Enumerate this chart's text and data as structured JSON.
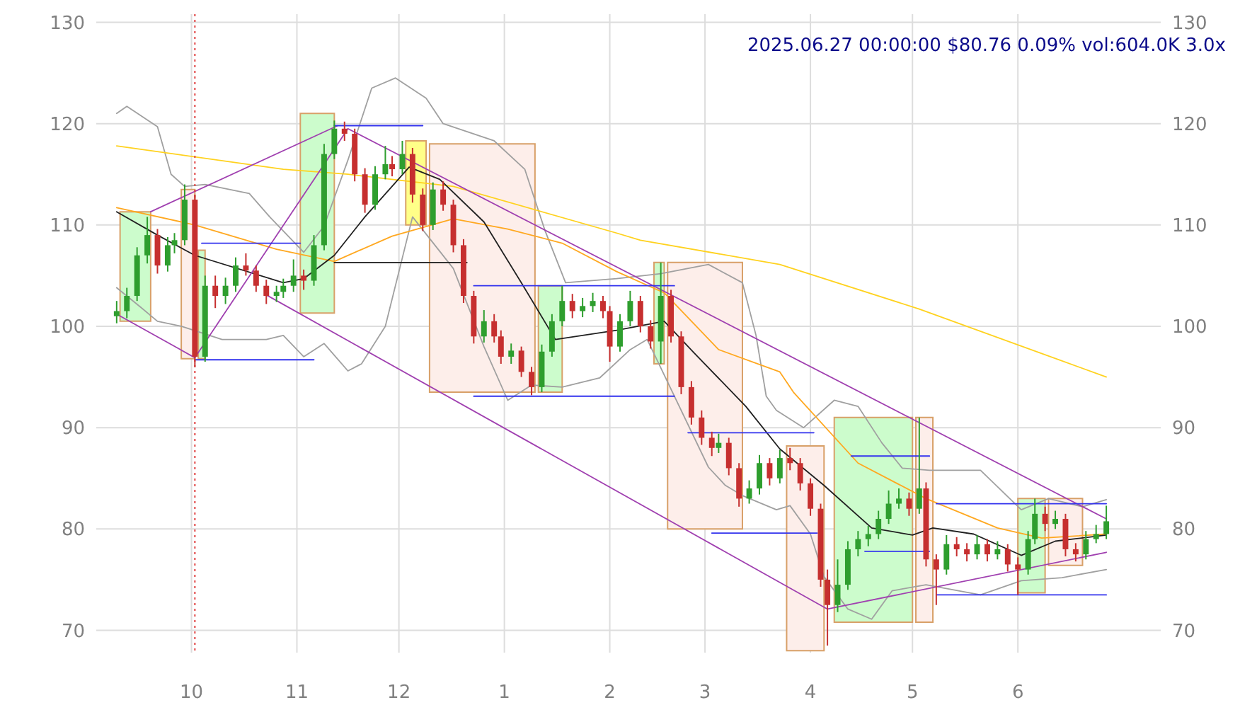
{
  "chart_data": {
    "type": "candlestick",
    "annotations": [
      "2025.06.27 00:00:00 $80.76 0.09% vol:604.0K 3.0x"
    ],
    "xlim": [
      "2024-09-03",
      "2025-07-13"
    ],
    "ylim": [
      67.8,
      130.8
    ],
    "y2lim": [
      67.8,
      130.8
    ],
    "xticks": [
      {
        "value": "2024-10-01",
        "label": "10"
      },
      {
        "value": "2024-11-01",
        "label": "11"
      },
      {
        "value": "2024-12-01",
        "label": "12"
      },
      {
        "value": "2025-01-01",
        "label": "1"
      },
      {
        "value": "2025-02-01",
        "label": "2"
      },
      {
        "value": "2025-03-01",
        "label": "3"
      },
      {
        "value": "2025-04-01",
        "label": "4"
      },
      {
        "value": "2025-05-01",
        "label": "5"
      },
      {
        "value": "2025-06-01",
        "label": "6"
      }
    ],
    "yticks": [
      70,
      80,
      90,
      100,
      110,
      120,
      130
    ],
    "y2ticks": [
      70,
      80,
      90,
      100,
      110,
      120,
      130
    ],
    "grid": true,
    "x": [
      "2024-09-09",
      "2024-09-12",
      "2024-09-15",
      "2024-09-18",
      "2024-09-21",
      "2024-09-24",
      "2024-09-26",
      "2024-09-29",
      "2024-10-02",
      "2024-10-05",
      "2024-10-08",
      "2024-10-11",
      "2024-10-14",
      "2024-10-17",
      "2024-10-20",
      "2024-10-23",
      "2024-10-26",
      "2024-10-28",
      "2024-10-31",
      "2024-11-03",
      "2024-11-06",
      "2024-11-09",
      "2024-11-12",
      "2024-11-15",
      "2024-11-18",
      "2024-11-21",
      "2024-11-24",
      "2024-11-27",
      "2024-11-29",
      "2024-12-02",
      "2024-12-05",
      "2024-12-08",
      "2024-12-11",
      "2024-12-14",
      "2024-12-17",
      "2024-12-20",
      "2024-12-23",
      "2024-12-26",
      "2024-12-29",
      "2024-12-31",
      "2025-01-03",
      "2025-01-06",
      "2025-01-09",
      "2025-01-12",
      "2025-01-15",
      "2025-01-18",
      "2025-01-21",
      "2025-01-24",
      "2025-01-27",
      "2025-01-30",
      "2025-02-01",
      "2025-02-04",
      "2025-02-07",
      "2025-02-10",
      "2025-02-13",
      "2025-02-16",
      "2025-02-19",
      "2025-02-22",
      "2025-02-25",
      "2025-02-28",
      "2025-03-03",
      "2025-03-05",
      "2025-03-08",
      "2025-03-11",
      "2025-03-14",
      "2025-03-17",
      "2025-03-20",
      "2025-03-23",
      "2025-03-26",
      "2025-03-29",
      "2025-04-01",
      "2025-04-04",
      "2025-04-06",
      "2025-04-09",
      "2025-04-12",
      "2025-04-15",
      "2025-04-18",
      "2025-04-21",
      "2025-04-24",
      "2025-04-27",
      "2025-04-30",
      "2025-05-03",
      "2025-05-05",
      "2025-05-08",
      "2025-05-11",
      "2025-05-14",
      "2025-05-17",
      "2025-05-20",
      "2025-05-23",
      "2025-05-26",
      "2025-05-29",
      "2025-06-01",
      "2025-06-04",
      "2025-06-06",
      "2025-06-09",
      "2025-06-12",
      "2025-06-15",
      "2025-06-18",
      "2025-06-21",
      "2025-06-24",
      "2025-06-27"
    ],
    "ohlc": [
      [
        101,
        102.5,
        100.3,
        101.5
      ],
      [
        101.5,
        103.8,
        100.8,
        103
      ],
      [
        103,
        107.8,
        102.5,
        107
      ],
      [
        107,
        110.8,
        106.2,
        109
      ],
      [
        109,
        109.6,
        105.2,
        106
      ],
      [
        106,
        108.8,
        105.4,
        108
      ],
      [
        108,
        109.2,
        107.2,
        108.5
      ],
      [
        108.5,
        114,
        108,
        112.5
      ],
      [
        112.5,
        113,
        96,
        97
      ],
      [
        97,
        105,
        96.5,
        104
      ],
      [
        104,
        105,
        101.8,
        103
      ],
      [
        103,
        104.8,
        102.2,
        104
      ],
      [
        104,
        106.8,
        103.4,
        106
      ],
      [
        106,
        107.2,
        105,
        105.5
      ],
      [
        105.5,
        106,
        103.4,
        104
      ],
      [
        104,
        104.6,
        102.2,
        103
      ],
      [
        103,
        104,
        102.4,
        103.4
      ],
      [
        103.4,
        104.7,
        102.8,
        104
      ],
      [
        104,
        106.6,
        103.4,
        105
      ],
      [
        105,
        105.6,
        103.6,
        104.5
      ],
      [
        104.5,
        109,
        104,
        108
      ],
      [
        108,
        118,
        107.5,
        117
      ],
      [
        117,
        120.3,
        116.5,
        119.5
      ],
      [
        119.5,
        120.2,
        118.3,
        119
      ],
      [
        119,
        119.5,
        114.3,
        115
      ],
      [
        115,
        115.6,
        111.2,
        112
      ],
      [
        112,
        115.8,
        111.5,
        115
      ],
      [
        115,
        117.8,
        114.5,
        116
      ],
      [
        116,
        116.8,
        114.8,
        115.5
      ],
      [
        115.5,
        118.3,
        115,
        117
      ],
      [
        117,
        117.6,
        112.2,
        113
      ],
      [
        113,
        113.6,
        109.4,
        110
      ],
      [
        110,
        114.2,
        109.5,
        113.5
      ],
      [
        113.5,
        114.3,
        111.4,
        112
      ],
      [
        112,
        112.5,
        107.3,
        108
      ],
      [
        108,
        108.6,
        102.3,
        103
      ],
      [
        103,
        103.5,
        98.3,
        99
      ],
      [
        99,
        101.6,
        98.4,
        100.5
      ],
      [
        100.5,
        101.2,
        98.4,
        99
      ],
      [
        99,
        99.6,
        96.3,
        97
      ],
      [
        97,
        98.3,
        96.3,
        97.6
      ],
      [
        97.6,
        98,
        95,
        95.5
      ],
      [
        95.5,
        96,
        93.2,
        94
      ],
      [
        94,
        98.2,
        93.5,
        97.5
      ],
      [
        97.5,
        101.2,
        97,
        100.5
      ],
      [
        100.5,
        104,
        100,
        102.5
      ],
      [
        102.5,
        103.2,
        100.8,
        101.5
      ],
      [
        101.5,
        102.8,
        100.9,
        102
      ],
      [
        102,
        103.3,
        101.4,
        102.5
      ],
      [
        102.5,
        103,
        100.8,
        101.5
      ],
      [
        101.5,
        102,
        96.5,
        98
      ],
      [
        98,
        101.2,
        97.5,
        100.5
      ],
      [
        100.5,
        103.5,
        100,
        102.5
      ],
      [
        102.5,
        103,
        99.4,
        100
      ],
      [
        100,
        100.6,
        97.8,
        98.5
      ],
      [
        98.5,
        106.3,
        96.3,
        103
      ],
      [
        103,
        103.6,
        98.4,
        99
      ],
      [
        99,
        99.5,
        93.3,
        94
      ],
      [
        94,
        94.6,
        90.3,
        91
      ],
      [
        91,
        91.7,
        88.3,
        89
      ],
      [
        89,
        89.6,
        87.2,
        88
      ],
      [
        88,
        89.4,
        87.5,
        88.5
      ],
      [
        88.5,
        89,
        85.3,
        86
      ],
      [
        86,
        86.5,
        82.2,
        83
      ],
      [
        83,
        84.8,
        82.5,
        84
      ],
      [
        84,
        87.3,
        83.4,
        86.5
      ],
      [
        86.5,
        87,
        84.3,
        85
      ],
      [
        85,
        87.8,
        84.5,
        87
      ],
      [
        87,
        88,
        85.8,
        86.5
      ],
      [
        86.5,
        87,
        83.8,
        84.5
      ],
      [
        84.5,
        85,
        81.3,
        82
      ],
      [
        82,
        82.5,
        74.3,
        75
      ],
      [
        75,
        76,
        68.5,
        72.5
      ],
      [
        72.5,
        77,
        71.8,
        74.5
      ],
      [
        74.5,
        78.8,
        74,
        78
      ],
      [
        78,
        79.8,
        77.3,
        79
      ],
      [
        79,
        80.3,
        78.3,
        79.5
      ],
      [
        79.5,
        81.8,
        79,
        81
      ],
      [
        81,
        83.8,
        80.5,
        82.5
      ],
      [
        82.5,
        84,
        82,
        83
      ],
      [
        83,
        83.6,
        81.3,
        82
      ],
      [
        82,
        91,
        81.5,
        84
      ],
      [
        84,
        84.6,
        76.3,
        77
      ],
      [
        77,
        77.5,
        72.5,
        76
      ],
      [
        76,
        79.4,
        75.5,
        78.5
      ],
      [
        78.5,
        79.2,
        77.3,
        78
      ],
      [
        78,
        78.6,
        76.8,
        77.5
      ],
      [
        77.5,
        79.4,
        77,
        78.5
      ],
      [
        78.5,
        79,
        76.8,
        77.5
      ],
      [
        77.5,
        78.8,
        77,
        78
      ],
      [
        78,
        78.5,
        75.8,
        76.5
      ],
      [
        76.5,
        77.2,
        73.5,
        76
      ],
      [
        76,
        79.8,
        75.5,
        79
      ],
      [
        79,
        83,
        78.5,
        81.5
      ],
      [
        81.5,
        82.2,
        79.8,
        80.5
      ],
      [
        80.5,
        81.8,
        80,
        81
      ],
      [
        81,
        81.5,
        77.3,
        78
      ],
      [
        78,
        78.6,
        76.8,
        77.5
      ],
      [
        77.5,
        79.8,
        77,
        79
      ],
      [
        79,
        80.4,
        78.6,
        79.5
      ],
      [
        79.5,
        82.3,
        79,
        80.76
      ]
    ],
    "colors": [
      "#2e9e2e",
      "#2e9e2e",
      "#2e9e2e",
      "#2e9e2e",
      "#c62f2f",
      "#2e9e2e",
      "#2e9e2e",
      "#2e9e2e",
      "#c62f2f",
      "#2e9e2e",
      "#c62f2f",
      "#2e9e2e",
      "#2e9e2e",
      "#c62f2f",
      "#c62f2f",
      "#c62f2f",
      "#2e9e2e",
      "#2e9e2e",
      "#2e9e2e",
      "#c62f2f",
      "#2e9e2e",
      "#2e9e2e",
      "#2e9e2e",
      "#c62f2f",
      "#c62f2f",
      "#c62f2f",
      "#2e9e2e",
      "#2e9e2e",
      "#c62f2f",
      "#2e9e2e",
      "#c62f2f",
      "#c62f2f",
      "#2e9e2e",
      "#c62f2f",
      "#c62f2f",
      "#c62f2f",
      "#c62f2f",
      "#2e9e2e",
      "#c62f2f",
      "#c62f2f",
      "#2e9e2e",
      "#c62f2f",
      "#c62f2f",
      "#2e9e2e",
      "#2e9e2e",
      "#2e9e2e",
      "#c62f2f",
      "#2e9e2e",
      "#2e9e2e",
      "#c62f2f",
      "#c62f2f",
      "#2e9e2e",
      "#2e9e2e",
      "#c62f2f",
      "#c62f2f",
      "#2e9e2e",
      "#c62f2f",
      "#c62f2f",
      "#c62f2f",
      "#c62f2f",
      "#c62f2f",
      "#2e9e2e",
      "#c62f2f",
      "#c62f2f",
      "#2e9e2e",
      "#2e9e2e",
      "#c62f2f",
      "#2e9e2e",
      "#c62f2f",
      "#c62f2f",
      "#c62f2f",
      "#c62f2f",
      "#c62f2f",
      "#2e9e2e",
      "#2e9e2e",
      "#2e9e2e",
      "#2e9e2e",
      "#2e9e2e",
      "#2e9e2e",
      "#2e9e2e",
      "#c62f2f",
      "#2e9e2e",
      "#c62f2f",
      "#c62f2f",
      "#2e9e2e",
      "#c62f2f",
      "#c62f2f",
      "#2e9e2e",
      "#c62f2f",
      "#2e9e2e",
      "#c62f2f",
      "#c62f2f",
      "#2e9e2e",
      "#2e9e2e",
      "#c62f2f",
      "#2e9e2e",
      "#c62f2f",
      "#c62f2f",
      "#2e9e2e",
      "#2e9e2e",
      "#2e9e2e"
    ],
    "series": [
      {
        "type": "area",
        "color": "#ccfccc",
        "x": [
          "2024-09-10",
          "2024-09-10",
          "2024-09-19",
          "2024-09-19"
        ],
        "values": [
          100.5,
          111.3,
          111.3,
          100.5
        ]
      },
      {
        "type": "area",
        "color": "#fdeeea",
        "x": [
          "2024-09-28",
          "2024-09-28",
          "2024-10-02",
          "2024-10-02"
        ],
        "values": [
          96.8,
          113.5,
          113.5,
          96.8
        ]
      },
      {
        "type": "area",
        "color": "#ccfccc",
        "x": [
          "2024-10-03",
          "2024-10-03",
          "2024-10-05",
          "2024-10-05"
        ],
        "values": [
          96.8,
          107.5,
          107.5,
          96.8
        ]
      },
      {
        "type": "area",
        "color": "#ccfccc",
        "x": [
          "2024-11-02",
          "2024-11-02",
          "2024-11-12",
          "2024-11-12"
        ],
        "values": [
          101.3,
          121,
          121,
          101.3
        ]
      },
      {
        "type": "area",
        "color": "#ffff88",
        "x": [
          "2024-12-03",
          "2024-12-03",
          "2024-12-09",
          "2024-12-09"
        ],
        "values": [
          110,
          118.3,
          118.3,
          110
        ]
      },
      {
        "type": "area",
        "color": "#fdeeea",
        "x": [
          "2024-12-10",
          "2024-12-10",
          "2025-01-10",
          "2025-01-10"
        ],
        "values": [
          93.5,
          118,
          118,
          93.5
        ]
      },
      {
        "type": "area",
        "color": "#ccfccc",
        "x": [
          "2025-01-11",
          "2025-01-11",
          "2025-01-18",
          "2025-01-18"
        ],
        "values": [
          93.5,
          104,
          104,
          93.5
        ]
      },
      {
        "type": "area",
        "color": "#ccfccc",
        "x": [
          "2025-02-14",
          "2025-02-14",
          "2025-02-17",
          "2025-02-17"
        ],
        "values": [
          96.3,
          106.3,
          106.3,
          96.3
        ]
      },
      {
        "type": "area",
        "color": "#fdeeea",
        "x": [
          "2025-02-18",
          "2025-02-18",
          "2025-03-12",
          "2025-03-12"
        ],
        "values": [
          80,
          106.3,
          106.3,
          80
        ]
      },
      {
        "type": "area",
        "color": "#fdeeea",
        "x": [
          "2025-03-25",
          "2025-03-25",
          "2025-04-05",
          "2025-04-05"
        ],
        "values": [
          68,
          88.2,
          88.2,
          68
        ]
      },
      {
        "type": "area",
        "color": "#ccfccc",
        "x": [
          "2025-04-08",
          "2025-04-08",
          "2025-05-01",
          "2025-05-01"
        ],
        "values": [
          70.8,
          91,
          91,
          70.8
        ]
      },
      {
        "type": "area",
        "color": "#fdeeea",
        "x": [
          "2025-05-02",
          "2025-05-02",
          "2025-05-07",
          "2025-05-07"
        ],
        "values": [
          70.8,
          91,
          91,
          70.8
        ]
      },
      {
        "type": "area",
        "color": "#ccfccc",
        "x": [
          "2025-06-01",
          "2025-06-01",
          "2025-06-09",
          "2025-06-09"
        ],
        "values": [
          73.7,
          83,
          83,
          73.7
        ]
      },
      {
        "type": "area",
        "color": "#fdeeea",
        "x": [
          "2025-06-10",
          "2025-06-10",
          "2025-06-20",
          "2025-06-20"
        ],
        "values": [
          76.4,
          83,
          83,
          76.4
        ]
      },
      {
        "type": "line",
        "color": "#a0a0a0",
        "x": [
          "2024-09-09",
          "2024-09-12",
          "2024-09-21",
          "2024-09-25",
          "2024-09-29",
          "2024-10-05",
          "2024-10-18",
          "2024-10-24",
          "2024-11-03",
          "2024-11-09",
          "2024-11-16",
          "2024-11-23",
          "2024-11-30",
          "2024-12-09",
          "2024-12-14",
          "2024-12-29",
          "2025-01-07",
          "2025-01-13",
          "2025-01-19",
          "2025-02-03",
          "2025-02-16",
          "2025-03-02",
          "2025-03-12",
          "2025-03-16",
          "2025-03-19",
          "2025-03-22",
          "2025-03-30",
          "2025-04-08",
          "2025-04-15",
          "2025-04-22",
          "2025-04-28",
          "2025-05-06",
          "2025-05-21",
          "2025-06-02",
          "2025-06-10",
          "2025-06-20",
          "2025-06-27"
        ],
        "values": [
          121,
          121.7,
          119.7,
          115,
          113.8,
          114,
          113.1,
          110.8,
          107.3,
          109.9,
          116.4,
          123.5,
          124.5,
          122.5,
          120,
          118.3,
          115.5,
          109.4,
          104.3,
          104.7,
          105.2,
          106.1,
          104.3,
          99.1,
          93.1,
          91.7,
          90,
          92.7,
          92.1,
          88.5,
          86,
          85.8,
          85.8,
          81.9,
          83,
          82.2,
          82.9
        ]
      },
      {
        "type": "line",
        "color": "#a0a0a0",
        "x": [
          "2024-09-09",
          "2024-09-16",
          "2024-09-21",
          "2024-09-28",
          "2024-10-10",
          "2024-10-23",
          "2024-10-28",
          "2024-11-03",
          "2024-11-09",
          "2024-11-16",
          "2024-11-20",
          "2024-11-27",
          "2024-12-05",
          "2024-12-17",
          "2024-12-26",
          "2025-01-02",
          "2025-01-09",
          "2025-01-18",
          "2025-01-29",
          "2025-02-07",
          "2025-02-12",
          "2025-03-02",
          "2025-03-07",
          "2025-03-12",
          "2025-03-22",
          "2025-03-26",
          "2025-04-01",
          "2025-04-05",
          "2025-04-12",
          "2025-04-19",
          "2025-04-25",
          "2025-05-05",
          "2025-05-21",
          "2025-06-02",
          "2025-06-14",
          "2025-06-27"
        ],
        "values": [
          103.8,
          101.9,
          100.5,
          100,
          98.7,
          98.7,
          99.1,
          97,
          98.3,
          95.6,
          96.3,
          100,
          110.8,
          105.7,
          98,
          92.7,
          94.2,
          94,
          94.9,
          97.7,
          98.7,
          86.1,
          84.3,
          83.3,
          81.9,
          82.3,
          79.5,
          75.3,
          72.1,
          71.1,
          73.9,
          74.5,
          73.5,
          74.9,
          75.2,
          76
        ]
      },
      {
        "type": "line",
        "color": "#ffd21f",
        "x": [
          "2024-09-09",
          "2024-10-28",
          "2024-11-16",
          "2024-12-17",
          "2025-02-03",
          "2025-02-10",
          "2025-03-23",
          "2025-05-03",
          "2025-06-27"
        ],
        "values": [
          117.8,
          115.5,
          115,
          113.8,
          109.2,
          108.5,
          106.1,
          101.7,
          95
        ]
      },
      {
        "type": "line",
        "color": "#ffa820",
        "x": [
          "2024-09-09",
          "2024-10-02",
          "2024-10-26",
          "2024-11-12",
          "2024-11-29",
          "2024-12-17",
          "2025-01-02",
          "2025-01-18",
          "2025-02-03",
          "2025-02-17",
          "2025-03-05",
          "2025-03-23",
          "2025-03-27",
          "2025-04-15",
          "2025-05-05",
          "2025-05-26",
          "2025-06-08",
          "2025-06-27"
        ],
        "values": [
          111.7,
          110,
          107.6,
          106.4,
          108.9,
          110.6,
          109.6,
          108.2,
          105.4,
          103.3,
          97.7,
          95.5,
          93.5,
          86.5,
          83,
          80.1,
          79.1,
          79.5
        ]
      },
      {
        "type": "line",
        "color": "#202020",
        "x": [
          "2024-09-09",
          "2024-09-21",
          "2024-10-02",
          "2024-10-28",
          "2024-11-03",
          "2024-11-12",
          "2024-11-21",
          "2024-12-04",
          "2024-12-13",
          "2024-12-26",
          "2025-01-06",
          "2025-01-16",
          "2025-02-03",
          "2025-02-17",
          "2025-02-26",
          "2025-03-13",
          "2025-03-23",
          "2025-04-05",
          "2025-04-19",
          "2025-05-01",
          "2025-05-07",
          "2025-05-19",
          "2025-06-02",
          "2025-06-12",
          "2025-06-27"
        ],
        "values": [
          111.3,
          109,
          107,
          104.3,
          104.7,
          107,
          110.8,
          115.7,
          114.5,
          110.3,
          104.3,
          98.7,
          99.6,
          100.5,
          97.3,
          92.1,
          87.9,
          84.3,
          80.1,
          79.4,
          80.1,
          79.5,
          77.4,
          78.8,
          79.4
        ]
      },
      {
        "type": "line",
        "color": "#a040b0",
        "x": [
          "2024-09-09",
          "2024-10-02",
          "2024-11-16",
          "2025-06-27"
        ],
        "values": [
          101.2,
          96.9,
          119.5,
          81
        ]
      },
      {
        "type": "line",
        "color": "#a040b0",
        "x": [
          "2024-09-19",
          "2024-11-13"
        ],
        "values": [
          111.3,
          119.8
        ]
      },
      {
        "type": "line",
        "color": "#a040b0",
        "x": [
          "2024-10-23",
          "2025-04-06",
          "2025-06-27"
        ],
        "values": [
          103.1,
          72.1,
          77.7
        ]
      },
      {
        "type": "line",
        "color": "#202020",
        "x": [
          "2024-11-12",
          "2024-12-21"
        ],
        "values": [
          106.3,
          106.3
        ]
      },
      {
        "type": "line",
        "color": "#3333ee",
        "x": [
          "2024-10-02",
          "2024-11-06"
        ],
        "values": [
          96.7,
          96.7
        ]
      },
      {
        "type": "line",
        "color": "#3333ee",
        "x": [
          "2024-10-04",
          "2024-11-02"
        ],
        "values": [
          108.2,
          108.2
        ]
      },
      {
        "type": "line",
        "color": "#3333ee",
        "x": [
          "2024-11-12",
          "2024-12-08"
        ],
        "values": [
          119.8,
          119.8
        ]
      },
      {
        "type": "line",
        "color": "#3333ee",
        "x": [
          "2024-12-23",
          "2025-02-20"
        ],
        "values": [
          104,
          104
        ]
      },
      {
        "type": "line",
        "color": "#3333ee",
        "x": [
          "2024-12-23",
          "2025-02-20"
        ],
        "values": [
          93.1,
          93.1
        ]
      },
      {
        "type": "line",
        "color": "#3333ee",
        "x": [
          "2025-02-24",
          "2025-04-02"
        ],
        "values": [
          89.5,
          89.5
        ]
      },
      {
        "type": "line",
        "color": "#3333ee",
        "x": [
          "2025-03-03",
          "2025-04-03"
        ],
        "values": [
          79.6,
          79.6
        ]
      },
      {
        "type": "line",
        "color": "#3333ee",
        "x": [
          "2025-04-13",
          "2025-05-06"
        ],
        "values": [
          87.2,
          87.2
        ]
      },
      {
        "type": "line",
        "color": "#3333ee",
        "x": [
          "2025-04-17",
          "2025-05-06"
        ],
        "values": [
          77.8,
          77.8
        ]
      },
      {
        "type": "line",
        "color": "#3333ee",
        "x": [
          "2025-05-08",
          "2025-06-27"
        ],
        "values": [
          82.5,
          82.5
        ]
      },
      {
        "type": "line",
        "color": "#3333ee",
        "x": [
          "2025-05-08",
          "2025-06-27"
        ],
        "values": [
          73.5,
          73.5
        ]
      }
    ],
    "ref_lines": [
      {
        "axis": "x",
        "value": "2024-10-02",
        "color": "#e04040",
        "line_style": "dotted"
      }
    ]
  }
}
